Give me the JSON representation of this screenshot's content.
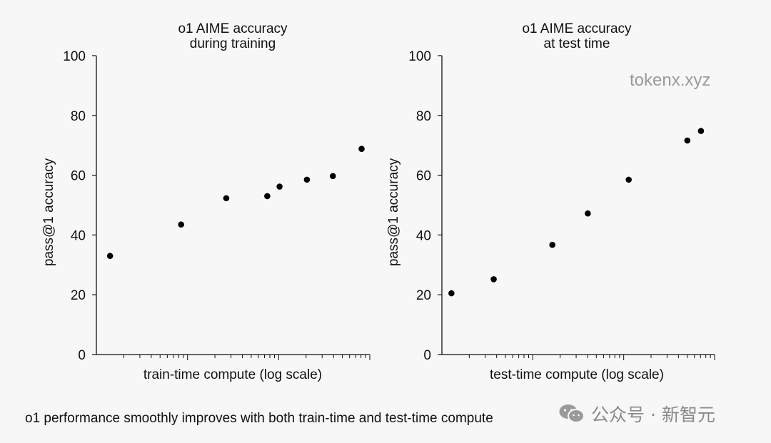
{
  "chart_data": [
    {
      "type": "scatter",
      "title": [
        "o1 AIME accuracy",
        "during training"
      ],
      "xlabel": "train-time compute (log scale)",
      "ylabel": "pass@1 accuracy",
      "xscale": "log",
      "xlim": [
        0,
        1
      ],
      "ylim": [
        0,
        100
      ],
      "yticks": [
        0,
        20,
        40,
        60,
        80,
        100
      ],
      "x": [
        0.05,
        0.31,
        0.475,
        0.625,
        0.67,
        0.77,
        0.865,
        0.97
      ],
      "y": [
        33,
        43.5,
        52.3,
        53,
        56.2,
        58.5,
        59.7,
        68.8
      ]
    },
    {
      "type": "scatter",
      "title": [
        "o1 AIME accuracy",
        "at test time"
      ],
      "xlabel": "test-time compute (log scale)",
      "ylabel": "pass@1 accuracy",
      "xscale": "log",
      "xlim": [
        0,
        1
      ],
      "ylim": [
        0,
        100
      ],
      "yticks": [
        0,
        20,
        40,
        60,
        80,
        100
      ],
      "x": [
        0.035,
        0.19,
        0.405,
        0.535,
        0.685,
        0.9,
        0.95
      ],
      "y": [
        20.5,
        25.2,
        36.7,
        47.2,
        58.5,
        71.6,
        74.8
      ]
    }
  ],
  "caption": "o1 performance smoothly improves with both train-time and test-time compute",
  "watermark": "tokenx.xyz",
  "wechat_label": "公众号 · 新智元"
}
